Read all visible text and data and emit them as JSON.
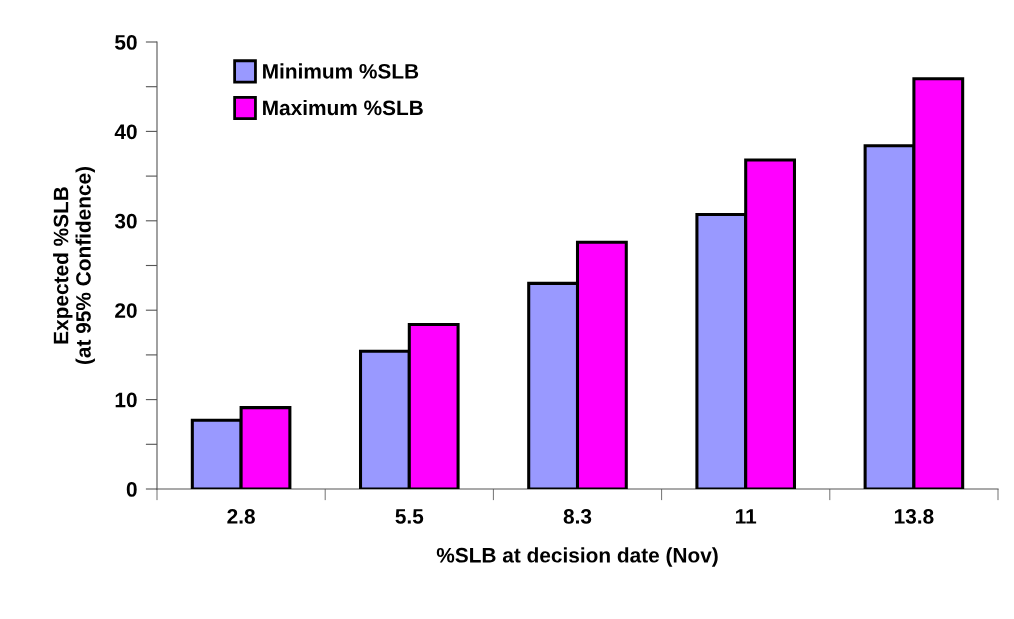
{
  "chart_data": {
    "type": "bar",
    "xlabel": "%SLB at decision date (Nov)",
    "ylabel": "Expected %SLB\n(at 95% Confidence)",
    "categories": [
      "2.8",
      "5.5",
      "8.3",
      "11",
      "13.8"
    ],
    "series": [
      {
        "name": "Minimum %SLB",
        "color": "#9999ff",
        "values": [
          7.7,
          15.4,
          23.0,
          30.7,
          38.4
        ]
      },
      {
        "name": "Maximum %SLB",
        "color": "#ff00ff",
        "values": [
          9.1,
          18.4,
          27.6,
          36.8,
          45.9
        ]
      }
    ],
    "ylim": [
      0,
      50
    ],
    "yticks": [
      0,
      {
        "value": 5,
        "label": null
      },
      10,
      {
        "value": 15,
        "label": null
      },
      20,
      {
        "value": 25,
        "label": null
      },
      30,
      {
        "value": 35,
        "label": null
      },
      40,
      {
        "value": 45,
        "label": null
      },
      50
    ],
    "grid": false,
    "legend": "top left"
  }
}
